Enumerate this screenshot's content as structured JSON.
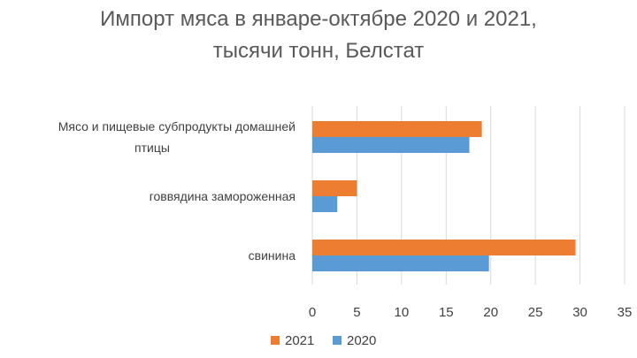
{
  "chart_data": {
    "type": "bar",
    "orientation": "horizontal",
    "title_lines": [
      "Импорт мяса в январе-октябре 2020 и 2021,",
      "тысячи тонн, Белстат"
    ],
    "categories": [
      {
        "lines": [
          "Мясо и пищевые субпродукты домашней",
          "птицы"
        ]
      },
      {
        "lines": [
          "говвядина замороженная"
        ]
      },
      {
        "lines": [
          "свинина"
        ]
      }
    ],
    "series": [
      {
        "name": "2021",
        "color": "#ED7D31",
        "values": [
          19.0,
          5.0,
          29.5
        ]
      },
      {
        "name": "2020",
        "color": "#5B9BD5",
        "values": [
          17.6,
          2.8,
          19.8
        ]
      }
    ],
    "xlim": [
      0,
      35
    ],
    "xticks": [
      "0",
      "5",
      "10",
      "15",
      "20",
      "25",
      "30",
      "35"
    ],
    "grid": true,
    "legend_position": "bottom"
  }
}
